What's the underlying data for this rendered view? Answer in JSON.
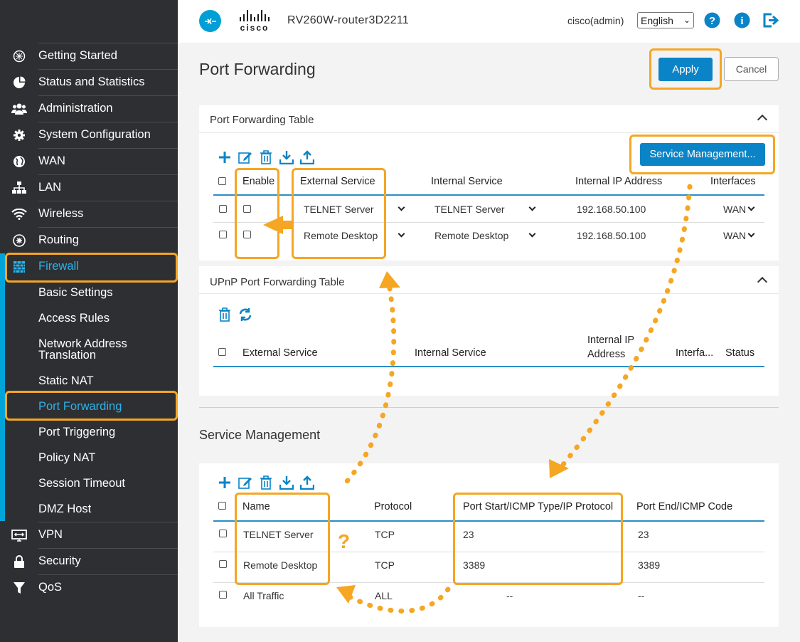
{
  "header": {
    "brand_word": "cisco",
    "device_name": "RV260W-router3D2211",
    "user": "cisco(admin)",
    "language": "English"
  },
  "sidebar": {
    "items": [
      {
        "label": "Getting Started",
        "icon": "getting-started-icon"
      },
      {
        "label": "Status and Statistics",
        "icon": "pie-chart-icon"
      },
      {
        "label": "Administration",
        "icon": "users-icon"
      },
      {
        "label": "System Configuration",
        "icon": "gear-icon"
      },
      {
        "label": "WAN",
        "icon": "globe-icon"
      },
      {
        "label": "LAN",
        "icon": "network-icon"
      },
      {
        "label": "Wireless",
        "icon": "wifi-icon"
      },
      {
        "label": "Routing",
        "icon": "routing-icon"
      },
      {
        "label": "Firewall",
        "icon": "firewall-icon"
      }
    ],
    "firewall_sub": [
      "Basic Settings",
      "Access Rules",
      "Network Address Translation",
      "Static NAT",
      "Port Forwarding",
      "Port Triggering",
      "Policy NAT",
      "Session Timeout",
      "DMZ Host"
    ],
    "bottom_items": [
      {
        "label": "VPN",
        "icon": "vpn-icon"
      },
      {
        "label": "Security",
        "icon": "lock-icon"
      },
      {
        "label": "QoS",
        "icon": "filter-icon"
      }
    ]
  },
  "page": {
    "title": "Port Forwarding",
    "apply_label": "Apply",
    "cancel_label": "Cancel"
  },
  "pf_table": {
    "title": "Port Forwarding Table",
    "service_mgmt_button": "Service Management...",
    "columns": [
      "Enable",
      "External Service",
      "Internal Service",
      "Internal IP Address",
      "Interfaces"
    ],
    "rows": [
      {
        "external": "TELNET Server",
        "internal": "TELNET Server",
        "ip": "192.168.50.100",
        "iface": "WAN"
      },
      {
        "external": "Remote Desktop",
        "internal": "Remote Desktop",
        "ip": "192.168.50.100",
        "iface": "WAN"
      }
    ]
  },
  "upnp_table": {
    "title": "UPnP Port Forwarding Table",
    "columns": [
      "External Service",
      "Internal Service",
      "Internal IP Address",
      "Interfa...",
      "Status"
    ]
  },
  "service_mgmt": {
    "title": "Service Management",
    "columns": [
      "Name",
      "Protocol",
      "Port Start/ICMP Type/IP Protocol",
      "Port End/ICMP Code"
    ],
    "rows": [
      {
        "name": "TELNET Server",
        "protocol": "TCP",
        "start": "23",
        "end": "23"
      },
      {
        "name": "Remote Desktop",
        "protocol": "TCP",
        "start": "3389",
        "end": "3389"
      },
      {
        "name": "All Traffic",
        "protocol": "ALL",
        "start": "--",
        "end": "--"
      }
    ]
  },
  "annotation": {
    "question": "?"
  },
  "colors": {
    "accent": "#0a84c6",
    "highlight": "#f5a623",
    "sidebar_bg": "#2d2f33",
    "active_nav": "#2ab3ea"
  }
}
